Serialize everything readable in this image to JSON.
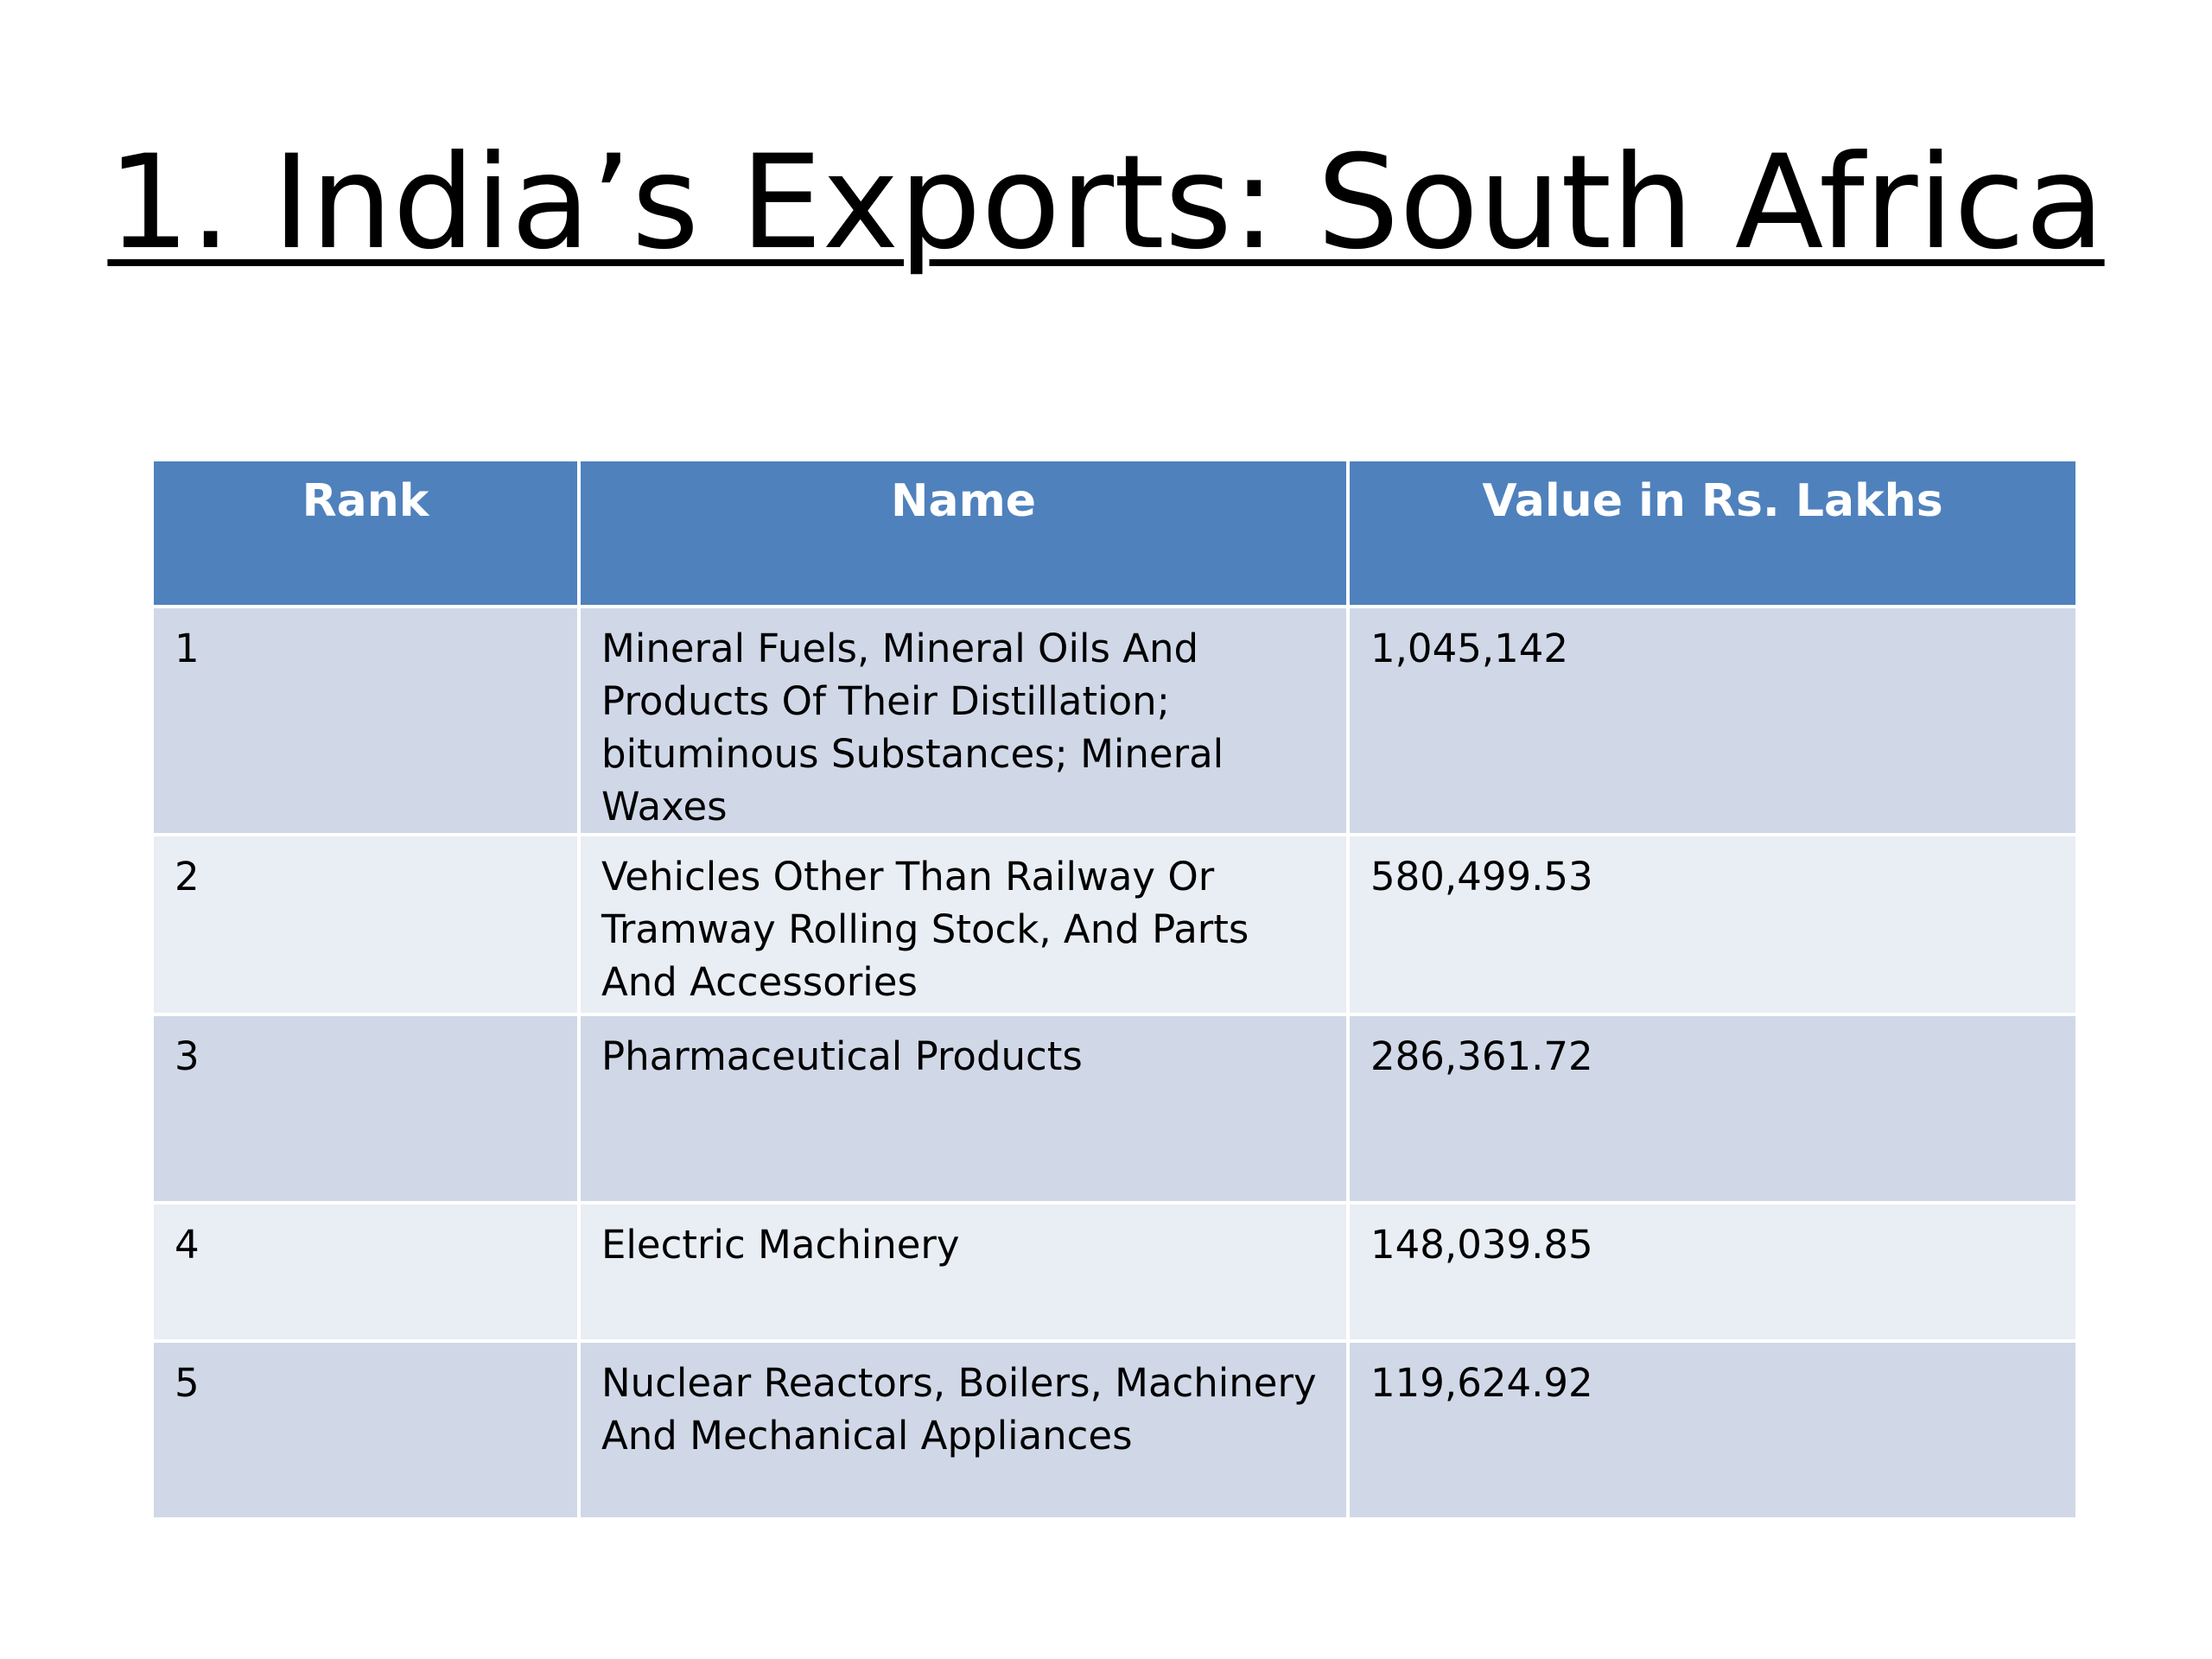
{
  "slide": {
    "title": "1. India’s Exports: South Africa"
  },
  "table": {
    "headers": {
      "rank": "Rank",
      "name": "Name",
      "value": "Value in Rs. Lakhs"
    },
    "rows": [
      {
        "rank": "1",
        "name": "Mineral Fuels, Mineral Oils And Products Of Their Distillation; bituminous Substances; Mineral Waxes",
        "value": "1,045,142"
      },
      {
        "rank": "2",
        "name": "Vehicles Other Than Railway Or Tramway Rolling Stock, And Parts And Accessories",
        "value": "580,499.53"
      },
      {
        "rank": "3",
        "name": "Pharmaceutical Products",
        "value": "286,361.72"
      },
      {
        "rank": "4",
        "name": "Electric  Machinery",
        "value": "148,039.85"
      },
      {
        "rank": "5",
        "name": "Nuclear Reactors, Boilers, Machinery And Mechanical Appliances",
        "value": "119,624.92"
      }
    ]
  },
  "colors": {
    "header_bg": "#4f81bd",
    "row_odd_bg": "#d0d8e8",
    "row_even_bg": "#e9edf4"
  }
}
